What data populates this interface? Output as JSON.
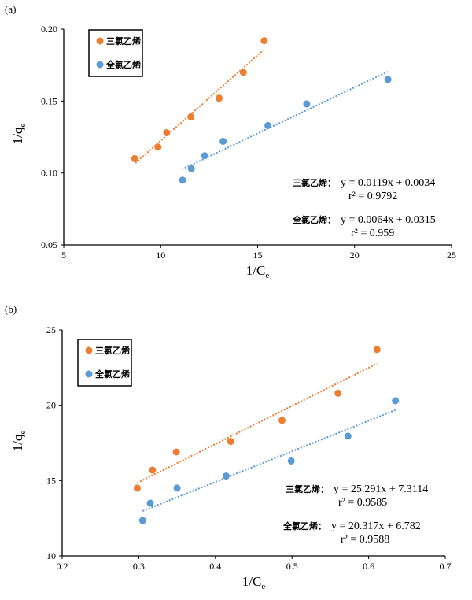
{
  "colors": {
    "tce": "#ED7D31",
    "pce": "#5B9BD5"
  },
  "chart_data": [
    {
      "type": "scatter",
      "panel_label": "(a)",
      "xlabel": "1/C",
      "xlabel_sub": "e",
      "ylabel": "1/q",
      "ylabel_sub": "e",
      "xlim": [
        5,
        25
      ],
      "ylim": [
        0.05,
        0.2
      ],
      "xticks": [
        "5",
        "10",
        "15",
        "20",
        "25"
      ],
      "yticks": [
        "0.05",
        "0.10",
        "0.15",
        "0.20"
      ],
      "xtick_values": [
        5,
        10,
        15,
        20,
        25
      ],
      "ytick_values": [
        0.05,
        0.1,
        0.15,
        0.2
      ],
      "legend_position": "top-left",
      "grid": false,
      "series": [
        {
          "name": "三氯乙烯",
          "color": "#ED7D31",
          "x": [
            8.66,
            9.86,
            10.31,
            11.56,
            13.01,
            14.26,
            15.34
          ],
          "y": [
            0.11,
            0.118,
            0.128,
            0.139,
            0.152,
            0.17,
            0.192
          ],
          "trend": {
            "slope": 0.0119,
            "intercept": 0.0034,
            "x_range": [
              8.7,
              15.3
            ]
          },
          "eq_label": "三氯乙烯：",
          "equation": "y = 0.0119x + 0.0034",
          "r2_label": "r² = 0.9792"
        },
        {
          "name": "全氯乙烯",
          "color": "#5B9BD5",
          "x": [
            11.13,
            11.58,
            12.27,
            13.22,
            15.53,
            17.53,
            21.72
          ],
          "y": [
            0.095,
            0.103,
            0.112,
            0.122,
            0.133,
            0.148,
            0.165
          ],
          "trend": {
            "slope": 0.0064,
            "intercept": 0.0315,
            "x_range": [
              11.1,
              21.7
            ]
          },
          "eq_label": "全氯乙烯：",
          "equation": "y = 0.0064x + 0.0315",
          "r2_label": "r² = 0.959"
        }
      ]
    },
    {
      "type": "scatter",
      "panel_label": "(b)",
      "xlabel": "1/C",
      "xlabel_sub": "e",
      "ylabel": "1/q",
      "ylabel_sub": "e",
      "xlim": [
        0.2,
        0.7
      ],
      "ylim": [
        10,
        25
      ],
      "xticks": [
        "0.2",
        "0.3",
        "0.4",
        "0.5",
        "0.6",
        "0.7"
      ],
      "yticks": [
        "10",
        "15",
        "20",
        "25"
      ],
      "xtick_values": [
        0.2,
        0.3,
        0.4,
        0.5,
        0.6,
        0.7
      ],
      "ytick_values": [
        10,
        15,
        20,
        25
      ],
      "legend_position": "top-left",
      "grid": false,
      "series": [
        {
          "name": "三氯乙烯",
          "color": "#ED7D31",
          "x": [
            0.298,
            0.318,
            0.349,
            0.42,
            0.487,
            0.56,
            0.611
          ],
          "y": [
            14.5,
            15.7,
            16.9,
            17.6,
            19.0,
            20.8,
            23.7
          ],
          "trend": {
            "slope": 25.291,
            "intercept": 7.3114,
            "x_range": [
              0.298,
              0.611
            ]
          },
          "eq_label": "三氯乙烯：",
          "equation": "y = 25.291x + 7.3114",
          "r2_label": "r²  = 0.9585"
        },
        {
          "name": "全氯乙烯",
          "color": "#5B9BD5",
          "x": [
            0.305,
            0.315,
            0.35,
            0.414,
            0.499,
            0.573,
            0.635
          ],
          "y": [
            12.35,
            13.5,
            14.5,
            15.3,
            16.3,
            17.95,
            20.3
          ],
          "trend": {
            "slope": 20.317,
            "intercept": 6.782,
            "x_range": [
              0.305,
              0.635
            ]
          },
          "eq_label": "全氯乙烯：",
          "equation": "y = 20.317x + 6.782",
          "r2_label": "r² = 0.9588"
        }
      ]
    }
  ]
}
